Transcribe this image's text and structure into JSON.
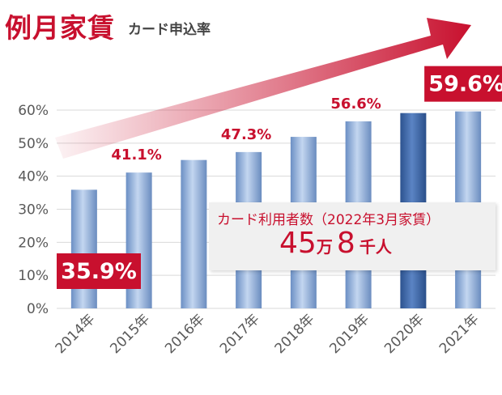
{
  "title": "例月家賃",
  "subtitle": "カード申込率",
  "colors": {
    "accent": "#c8102e",
    "bar": "#8fb0dc",
    "bar_highlight": "#3a66a8",
    "axis_text": "#595959"
  },
  "info_box": {
    "label": "カード利用者数（2022年3月家賃）",
    "value_part1": "45",
    "unit_part1": "万",
    "value_part2": "8",
    "unit_part2": "千人"
  },
  "chart_data": {
    "type": "bar",
    "categories": [
      "2014年",
      "2015年",
      "2016年",
      "2017年",
      "2018年",
      "2019年",
      "2020年",
      "2021年"
    ],
    "values": [
      35.9,
      41.1,
      44.9,
      47.3,
      51.9,
      56.6,
      59.1,
      59.6
    ],
    "value_labels": [
      "35.9%",
      "41.1%",
      "",
      "47.3%",
      "",
      "56.6%",
      "",
      "59.6%"
    ],
    "highlight_index": 6,
    "y_ticks": [
      "0%",
      "10%",
      "20%",
      "30%",
      "40%",
      "50%",
      "60%"
    ],
    "ylim": [
      0,
      60
    ],
    "grid": true,
    "trend_arrow": true
  }
}
